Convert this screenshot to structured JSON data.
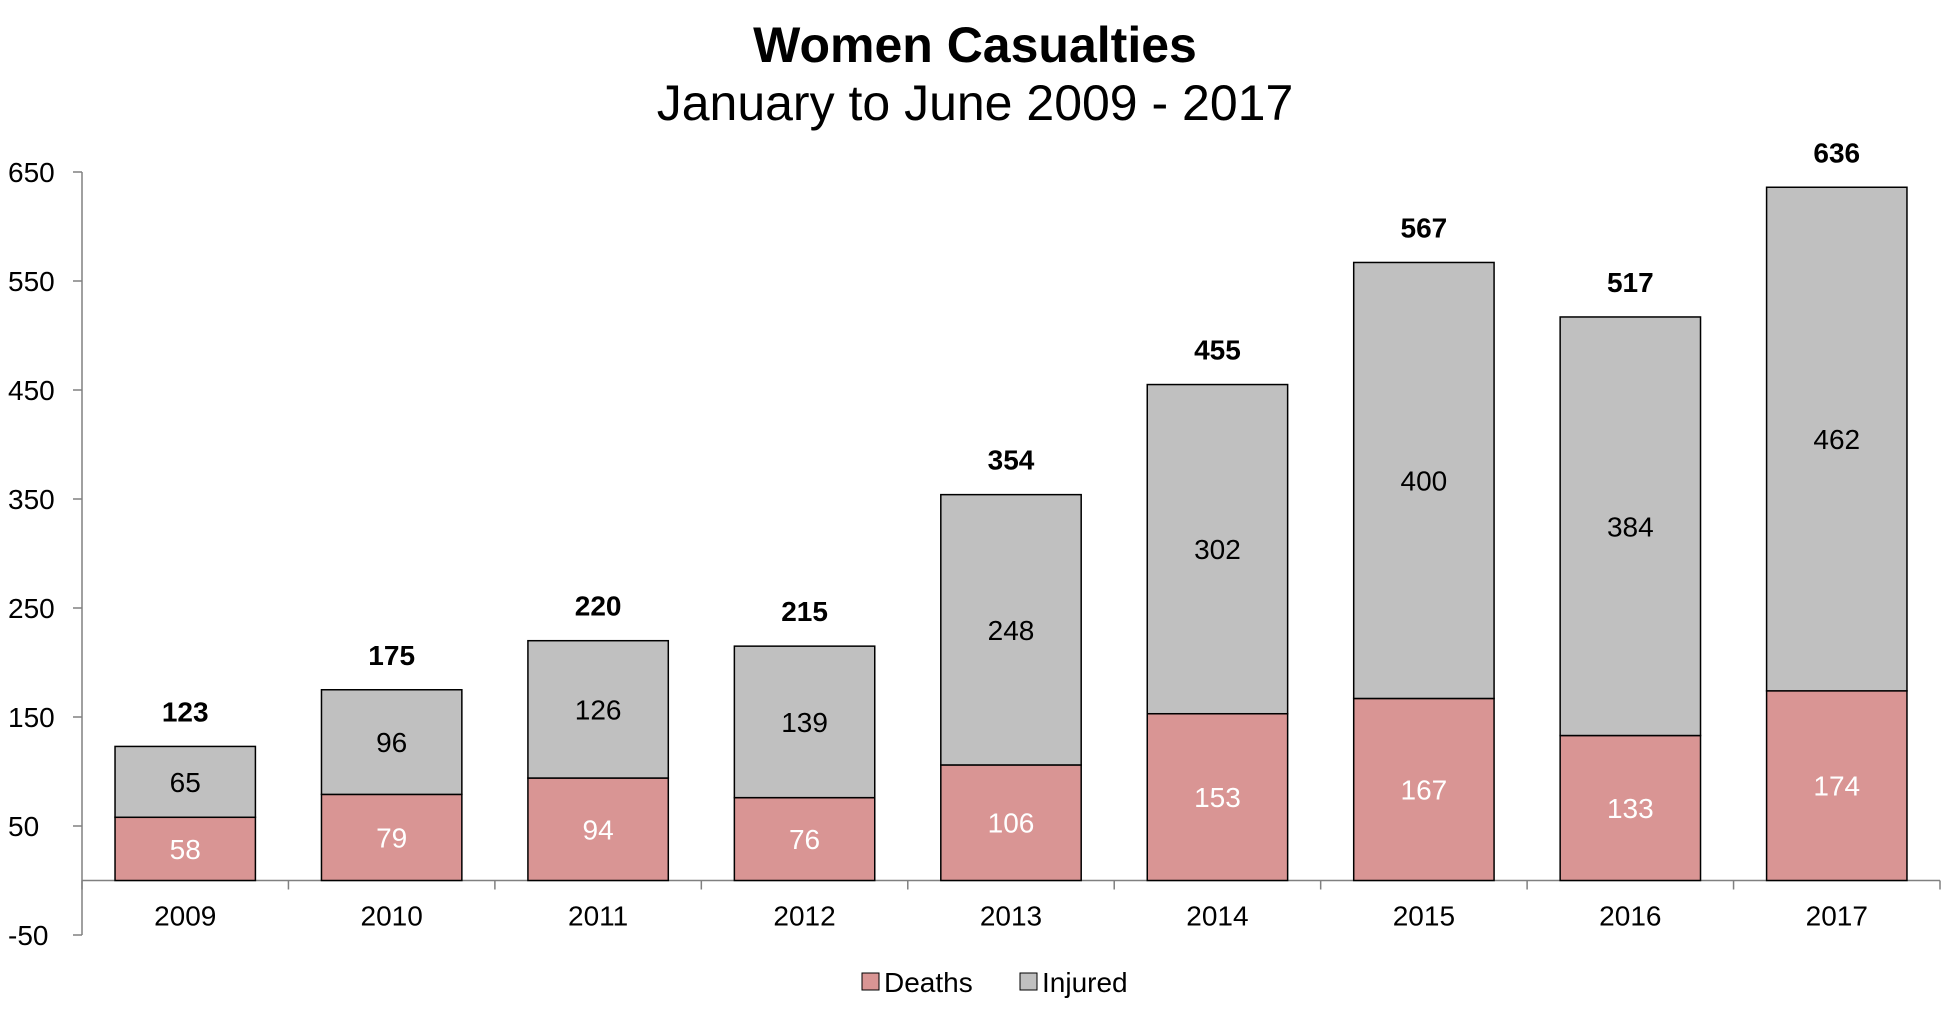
{
  "chart_data": {
    "type": "bar",
    "stacked": true,
    "title": "Women Casualties",
    "subtitle": "January to June 2009 - 2017",
    "categories": [
      "2009",
      "2010",
      "2011",
      "2012",
      "2013",
      "2014",
      "2015",
      "2016",
      "2017"
    ],
    "series": [
      {
        "name": "Deaths",
        "color": "#d99594",
        "values": [
          58,
          79,
          94,
          76,
          106,
          153,
          167,
          133,
          174
        ]
      },
      {
        "name": "Injured",
        "color": "#c0c0c0",
        "values": [
          65,
          96,
          126,
          139,
          248,
          302,
          400,
          384,
          462
        ]
      }
    ],
    "totals": [
      123,
      175,
      220,
      215,
      354,
      455,
      567,
      517,
      636
    ],
    "ylim": [
      -50,
      650
    ],
    "yticks": [
      650,
      550,
      450,
      350,
      250,
      150,
      50,
      -50
    ],
    "xlabel": "",
    "ylabel": "",
    "grid": false,
    "legend": "bottom-center"
  }
}
